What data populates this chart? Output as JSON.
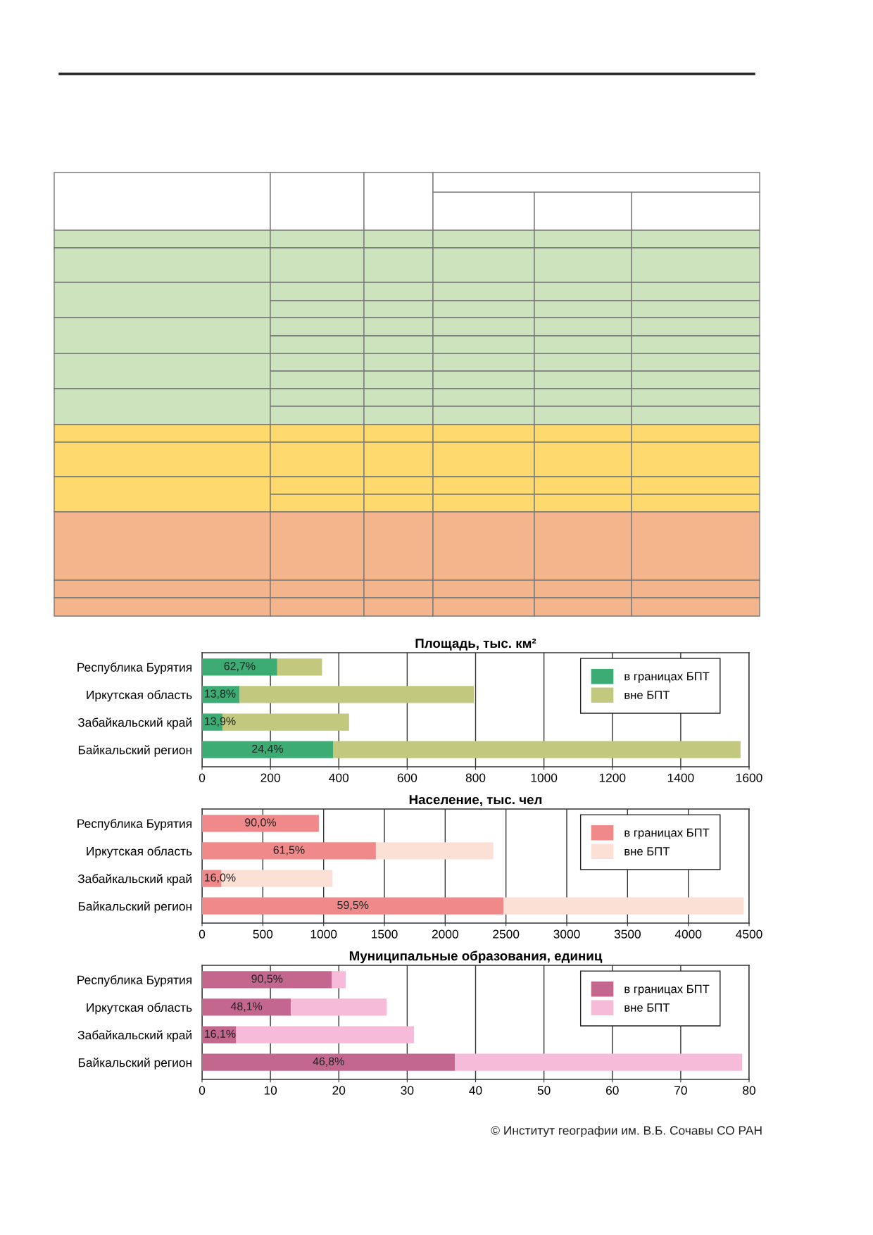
{
  "chart_data": [
    {
      "type": "bar",
      "orientation": "horizontal",
      "stacked": true,
      "title": "Площадь, тыс. км²",
      "categories": [
        "Республика Бурятия",
        "Иркутская область",
        "Забайкальский край",
        "Байкальский регион"
      ],
      "series": [
        {
          "name": "в границах БПТ",
          "color": "#3dab74",
          "values": [
            220,
            110,
            60,
            383
          ]
        },
        {
          "name": "вне БПТ",
          "color": "#c2c97e",
          "values": [
            131,
            685,
            370,
            1192
          ]
        }
      ],
      "xlim": [
        0,
        1600
      ],
      "xticks": [
        0,
        200,
        400,
        600,
        800,
        1000,
        1200,
        1400,
        1600
      ],
      "grid": "x",
      "legend": "top right",
      "annotations": [
        "62,7%",
        "13,8%",
        "13,9%",
        "24,4%"
      ]
    },
    {
      "type": "bar",
      "orientation": "horizontal",
      "stacked": true,
      "title": "Население, тыс. чел",
      "categories": [
        "Республика Бурятия",
        "Иркутская область",
        "Забайкальский край",
        "Байкальский регион"
      ],
      "series": [
        {
          "name": "в границах БПТ",
          "color": "#f08a8a",
          "values": [
            961,
            1430,
            160,
            2481
          ]
        },
        {
          "name": "вне БПТ",
          "color": "#fbe0d6",
          "values": [
            null,
            966,
            913,
            1975
          ]
        }
      ],
      "xlim": [
        0,
        4500
      ],
      "xticks": [
        0,
        500,
        1000,
        1500,
        2000,
        2500,
        3000,
        3500,
        4000,
        4500
      ],
      "grid": "x",
      "legend": "top right",
      "annotations": [
        "90,0%",
        "61,5%",
        "16,0%",
        "59,5%"
      ]
    },
    {
      "type": "bar",
      "orientation": "horizontal",
      "stacked": true,
      "title": "Муниципальные образования, единиц",
      "categories": [
        "Республика Бурятия",
        "Иркутская область",
        "Забайкальский край",
        "Байкальский регион"
      ],
      "series": [
        {
          "name": "в границах БПТ",
          "color": "#c4678e",
          "values": [
            19,
            13,
            5,
            37
          ]
        },
        {
          "name": "вне БПТ",
          "color": "#f5bbd8",
          "values": [
            2,
            14,
            26,
            42
          ]
        }
      ],
      "xlim": [
        0,
        80
      ],
      "xticks": [
        0,
        10,
        20,
        30,
        40,
        50,
        60,
        70,
        80
      ],
      "grid": "x",
      "legend": "top right",
      "annotations": [
        "90,5%",
        "48,1%",
        "16,1%",
        "46,8%",
        "© Институт географии им. В.Б. Сочавы СО РАН"
      ]
    }
  ]
}
